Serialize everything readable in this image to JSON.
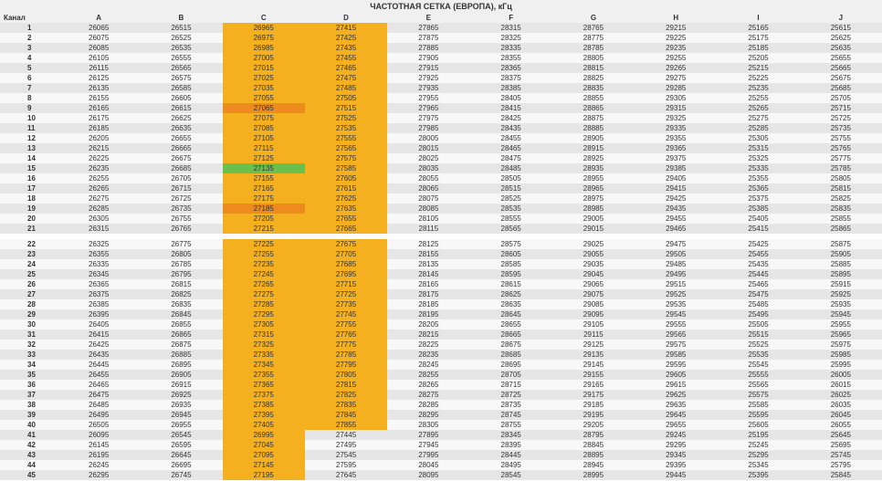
{
  "title": "ЧАСТОТНАЯ СЕТКА (ЕВРОПА), кГц",
  "headers": [
    "Канал",
    "A",
    "B",
    "C",
    "D",
    "E",
    "F",
    "G",
    "H",
    "I",
    "J"
  ],
  "rows": [
    {
      "n": "1",
      "v": [
        "26065",
        "26515",
        "26965",
        "27415",
        "27865",
        "28315",
        "28765",
        "29215",
        "25165",
        "25615"
      ]
    },
    {
      "n": "2",
      "v": [
        "26075",
        "26525",
        "26975",
        "27425",
        "27875",
        "28325",
        "28775",
        "29225",
        "25175",
        "25625"
      ]
    },
    {
      "n": "3",
      "v": [
        "26085",
        "26535",
        "26985",
        "27435",
        "27885",
        "28335",
        "28785",
        "29235",
        "25185",
        "25635"
      ]
    },
    {
      "n": "4",
      "v": [
        "26105",
        "26555",
        "27005",
        "27455",
        "27905",
        "28355",
        "28805",
        "29255",
        "25205",
        "25655"
      ]
    },
    {
      "n": "5",
      "v": [
        "26115",
        "26565",
        "27015",
        "27465",
        "27915",
        "28365",
        "28815",
        "29265",
        "25215",
        "25665"
      ]
    },
    {
      "n": "6",
      "v": [
        "26125",
        "26575",
        "27025",
        "27475",
        "27925",
        "28375",
        "28825",
        "29275",
        "25225",
        "25675"
      ]
    },
    {
      "n": "7",
      "v": [
        "26135",
        "26585",
        "27035",
        "27485",
        "27935",
        "28385",
        "28835",
        "29285",
        "25235",
        "25685"
      ]
    },
    {
      "n": "8",
      "v": [
        "26155",
        "26605",
        "27055",
        "27505",
        "27955",
        "28405",
        "28855",
        "29305",
        "25255",
        "25705"
      ]
    },
    {
      "n": "9",
      "v": [
        "26165",
        "26615",
        "27065",
        "27515",
        "27965",
        "28415",
        "28865",
        "29315",
        "25265",
        "25715"
      ]
    },
    {
      "n": "10",
      "v": [
        "26175",
        "26625",
        "27075",
        "27525",
        "27975",
        "28425",
        "28875",
        "29325",
        "25275",
        "25725"
      ]
    },
    {
      "n": "11",
      "v": [
        "26185",
        "26635",
        "27085",
        "27535",
        "27985",
        "28435",
        "28885",
        "29335",
        "25285",
        "25735"
      ]
    },
    {
      "n": "12",
      "v": [
        "26205",
        "26655",
        "27105",
        "27555",
        "28005",
        "28455",
        "28905",
        "29355",
        "25305",
        "25755"
      ]
    },
    {
      "n": "13",
      "v": [
        "26215",
        "26665",
        "27115",
        "27565",
        "28015",
        "28465",
        "28915",
        "29365",
        "25315",
        "25765"
      ]
    },
    {
      "n": "14",
      "v": [
        "26225",
        "26675",
        "27125",
        "27575",
        "28025",
        "28475",
        "28925",
        "29375",
        "25325",
        "25775"
      ]
    },
    {
      "n": "15",
      "v": [
        "26235",
        "26685",
        "27135",
        "27585",
        "28035",
        "28485",
        "28935",
        "29385",
        "25335",
        "25785"
      ]
    },
    {
      "n": "16",
      "v": [
        "26255",
        "26705",
        "27155",
        "27605",
        "28055",
        "28505",
        "28955",
        "29405",
        "25355",
        "25805"
      ]
    },
    {
      "n": "17",
      "v": [
        "26265",
        "26715",
        "27165",
        "27615",
        "28065",
        "28515",
        "28965",
        "29415",
        "25365",
        "25815"
      ]
    },
    {
      "n": "18",
      "v": [
        "26275",
        "26725",
        "27175",
        "27625",
        "28075",
        "28525",
        "28975",
        "29425",
        "25375",
        "25825"
      ]
    },
    {
      "n": "19",
      "v": [
        "26285",
        "26735",
        "27185",
        "27635",
        "28085",
        "28535",
        "28985",
        "29435",
        "25385",
        "25835"
      ]
    },
    {
      "n": "20",
      "v": [
        "26305",
        "26755",
        "27205",
        "27655",
        "28105",
        "28555",
        "29005",
        "29455",
        "25405",
        "25855"
      ]
    },
    {
      "n": "21",
      "v": [
        "26315",
        "26765",
        "27215",
        "27665",
        "28115",
        "28565",
        "29015",
        "29465",
        "25415",
        "25865"
      ]
    },
    {
      "n": "22",
      "v": [
        "26325",
        "26775",
        "27225",
        "27675",
        "28125",
        "28575",
        "29025",
        "29475",
        "25425",
        "25875"
      ]
    },
    {
      "n": "23",
      "v": [
        "26355",
        "26805",
        "27255",
        "27705",
        "28155",
        "28605",
        "29055",
        "29505",
        "25455",
        "25905"
      ]
    },
    {
      "n": "24",
      "v": [
        "26335",
        "26785",
        "27235",
        "27685",
        "28135",
        "28585",
        "29035",
        "29485",
        "25435",
        "25885"
      ]
    },
    {
      "n": "25",
      "v": [
        "26345",
        "26795",
        "27245",
        "27695",
        "28145",
        "28595",
        "29045",
        "29495",
        "25445",
        "25895"
      ]
    },
    {
      "n": "26",
      "v": [
        "26365",
        "26815",
        "27265",
        "27715",
        "28165",
        "28615",
        "29065",
        "29515",
        "25465",
        "25915"
      ]
    },
    {
      "n": "27",
      "v": [
        "26375",
        "26825",
        "27275",
        "27725",
        "28175",
        "28625",
        "29075",
        "29525",
        "25475",
        "25925"
      ]
    },
    {
      "n": "28",
      "v": [
        "26385",
        "26835",
        "27285",
        "27735",
        "28185",
        "28635",
        "29085",
        "29535",
        "25485",
        "25935"
      ]
    },
    {
      "n": "29",
      "v": [
        "26395",
        "26845",
        "27295",
        "27745",
        "28195",
        "28645",
        "29095",
        "29545",
        "25495",
        "25945"
      ]
    },
    {
      "n": "30",
      "v": [
        "26405",
        "26855",
        "27305",
        "27755",
        "28205",
        "28655",
        "29105",
        "29555",
        "25505",
        "25955"
      ]
    },
    {
      "n": "31",
      "v": [
        "26415",
        "26865",
        "27315",
        "27765",
        "28215",
        "28665",
        "29115",
        "29565",
        "25515",
        "25965"
      ]
    },
    {
      "n": "32",
      "v": [
        "26425",
        "26875",
        "27325",
        "27775",
        "28225",
        "28675",
        "29125",
        "29575",
        "25525",
        "25975"
      ]
    },
    {
      "n": "33",
      "v": [
        "26435",
        "26885",
        "27335",
        "27785",
        "28235",
        "28685",
        "29135",
        "29585",
        "25535",
        "25985"
      ]
    },
    {
      "n": "34",
      "v": [
        "26445",
        "26895",
        "27345",
        "27795",
        "28245",
        "28695",
        "29145",
        "29595",
        "25545",
        "25995"
      ]
    },
    {
      "n": "35",
      "v": [
        "26455",
        "26905",
        "27355",
        "27805",
        "28255",
        "28705",
        "29155",
        "29605",
        "25555",
        "26005"
      ]
    },
    {
      "n": "36",
      "v": [
        "26465",
        "26915",
        "27365",
        "27815",
        "28265",
        "28715",
        "29165",
        "29615",
        "25565",
        "26015"
      ]
    },
    {
      "n": "37",
      "v": [
        "26475",
        "26925",
        "27375",
        "27825",
        "28275",
        "28725",
        "29175",
        "29625",
        "25575",
        "26025"
      ]
    },
    {
      "n": "38",
      "v": [
        "26485",
        "26935",
        "27385",
        "27835",
        "28285",
        "28735",
        "29185",
        "29635",
        "25585",
        "26035"
      ]
    },
    {
      "n": "39",
      "v": [
        "26495",
        "26945",
        "27395",
        "27845",
        "28295",
        "28745",
        "29195",
        "29645",
        "25595",
        "26045"
      ]
    },
    {
      "n": "40",
      "v": [
        "26505",
        "26955",
        "27405",
        "27855",
        "28305",
        "28755",
        "29205",
        "29655",
        "25605",
        "26055"
      ]
    },
    {
      "n": "41",
      "v": [
        "26095",
        "26545",
        "26995",
        "27445",
        "27895",
        "28345",
        "28795",
        "29245",
        "25195",
        "25645"
      ]
    },
    {
      "n": "42",
      "v": [
        "26145",
        "26595",
        "27045",
        "27495",
        "27945",
        "28395",
        "28845",
        "29295",
        "25245",
        "25695"
      ]
    },
    {
      "n": "43",
      "v": [
        "26195",
        "26645",
        "27095",
        "27545",
        "27995",
        "28445",
        "28895",
        "29345",
        "25295",
        "25745"
      ]
    },
    {
      "n": "44",
      "v": [
        "26245",
        "26695",
        "27145",
        "27595",
        "28045",
        "28495",
        "28945",
        "29395",
        "25345",
        "25795"
      ]
    },
    {
      "n": "45",
      "v": [
        "26295",
        "26745",
        "27195",
        "27645",
        "28095",
        "28545",
        "28995",
        "29445",
        "25395",
        "25845"
      ]
    }
  ],
  "highlight": {
    "colC_all": true,
    "colD_rows": [
      1,
      2,
      3,
      4,
      5,
      6,
      7,
      8,
      9,
      10,
      11,
      12,
      13,
      14,
      15,
      16,
      17,
      18,
      19,
      20,
      21,
      22,
      23,
      24,
      25,
      26,
      27,
      28,
      29,
      30,
      31,
      32,
      33,
      34,
      35,
      36,
      37,
      38,
      39,
      40
    ],
    "orangeC": [
      9,
      19
    ],
    "greenC": [
      15
    ]
  },
  "gapAfter": 21,
  "colors": {
    "hi": "#f4b01e",
    "hi2": "#ee8b1e",
    "hi3": "#6bc04b",
    "even": "#f8f8f8",
    "odd": "#e6e6e6"
  }
}
